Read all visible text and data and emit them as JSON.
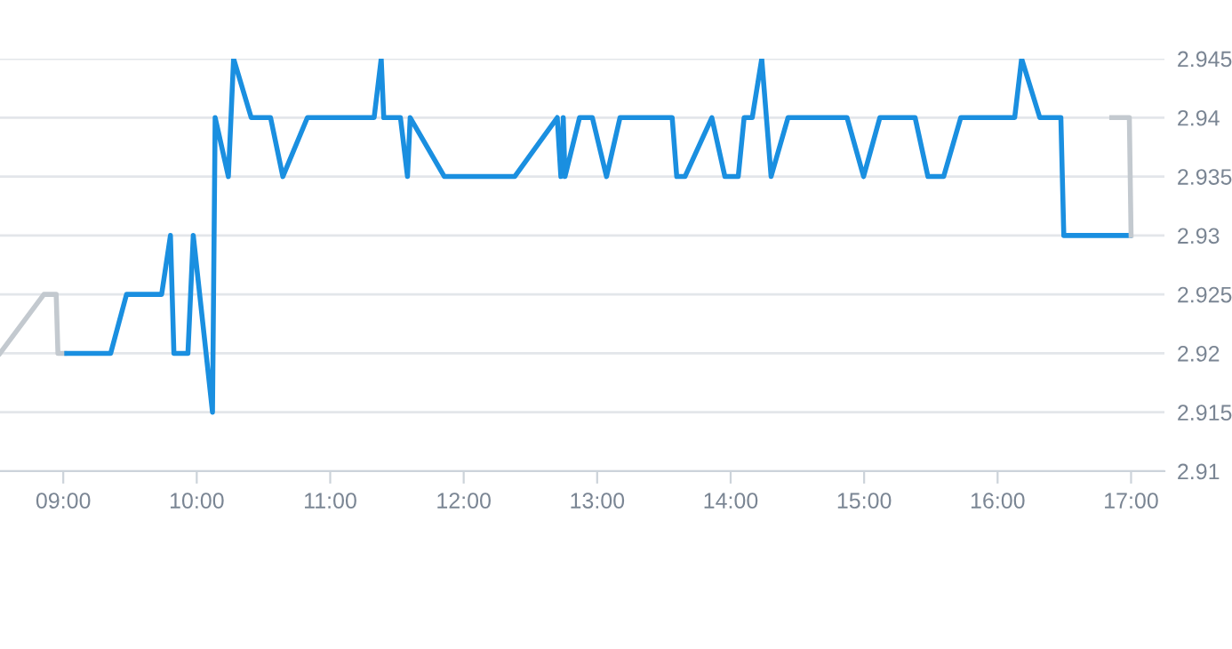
{
  "chart_data": {
    "type": "line",
    "series": [
      {
        "color": "#c3c9cf",
        "x": [
          8.526,
          8.855,
          8.947,
          8.96,
          9.01
        ],
        "values": [
          2.92,
          2.925,
          2.925,
          2.92,
          2.92
        ]
      },
      {
        "color": "#1a8fe0",
        "x": [
          9.026,
          9.355,
          9.474,
          9.737,
          9.803,
          9.829,
          9.934,
          9.974,
          10.118,
          10.138,
          10.237,
          10.276,
          10.408,
          10.553,
          10.645,
          10.829,
          11.329,
          11.382,
          11.401,
          11.526,
          11.579,
          11.599,
          11.855,
          12.382,
          12.701,
          12.728,
          12.746,
          12.759,
          12.868,
          12.964,
          13.07,
          13.171,
          13.562,
          13.596,
          13.658,
          13.859,
          13.957,
          14.057,
          14.101,
          14.162,
          14.233,
          14.303,
          14.43,
          14.872,
          14.996,
          15.118,
          15.382,
          15.478,
          15.596,
          15.724,
          16.128,
          16.18,
          16.316,
          16.474,
          16.496,
          16.991
        ],
        "values": [
          2.92,
          2.92,
          2.925,
          2.925,
          2.93,
          2.92,
          2.92,
          2.93,
          2.915,
          2.94,
          2.935,
          2.945,
          2.94,
          2.94,
          2.935,
          2.94,
          2.94,
          2.945,
          2.94,
          2.94,
          2.935,
          2.94,
          2.935,
          2.935,
          2.94,
          2.935,
          2.94,
          2.935,
          2.94,
          2.94,
          2.935,
          2.94,
          2.94,
          2.935,
          2.935,
          2.94,
          2.935,
          2.935,
          2.94,
          2.94,
          2.945,
          2.935,
          2.94,
          2.94,
          2.935,
          2.94,
          2.94,
          2.935,
          2.935,
          2.94,
          2.94,
          2.945,
          2.94,
          2.94,
          2.93,
          2.93
        ]
      },
      {
        "color": "#c3c9cf",
        "x": [
          16.855,
          16.987,
          17.0
        ],
        "values": [
          2.94,
          2.94,
          2.93
        ]
      }
    ],
    "xlim": [
      8.526,
      17.25
    ],
    "xticks": [
      {
        "value": 9,
        "label": "09:00"
      },
      {
        "value": 10,
        "label": "10:00"
      },
      {
        "value": 11,
        "label": "11:00"
      },
      {
        "value": 12,
        "label": "12:00"
      },
      {
        "value": 13,
        "label": "13:00"
      },
      {
        "value": 14,
        "label": "14:00"
      },
      {
        "value": 15,
        "label": "15:00"
      },
      {
        "value": 16,
        "label": "16:00"
      },
      {
        "value": 17,
        "label": "17:00"
      }
    ],
    "ylim": [
      2.91,
      2.945
    ],
    "yticks": [
      2.91,
      2.915,
      2.92,
      2.925,
      2.93,
      2.935,
      2.94,
      2.945
    ],
    "grid": "y",
    "marker": "none",
    "line_style": "solid"
  }
}
